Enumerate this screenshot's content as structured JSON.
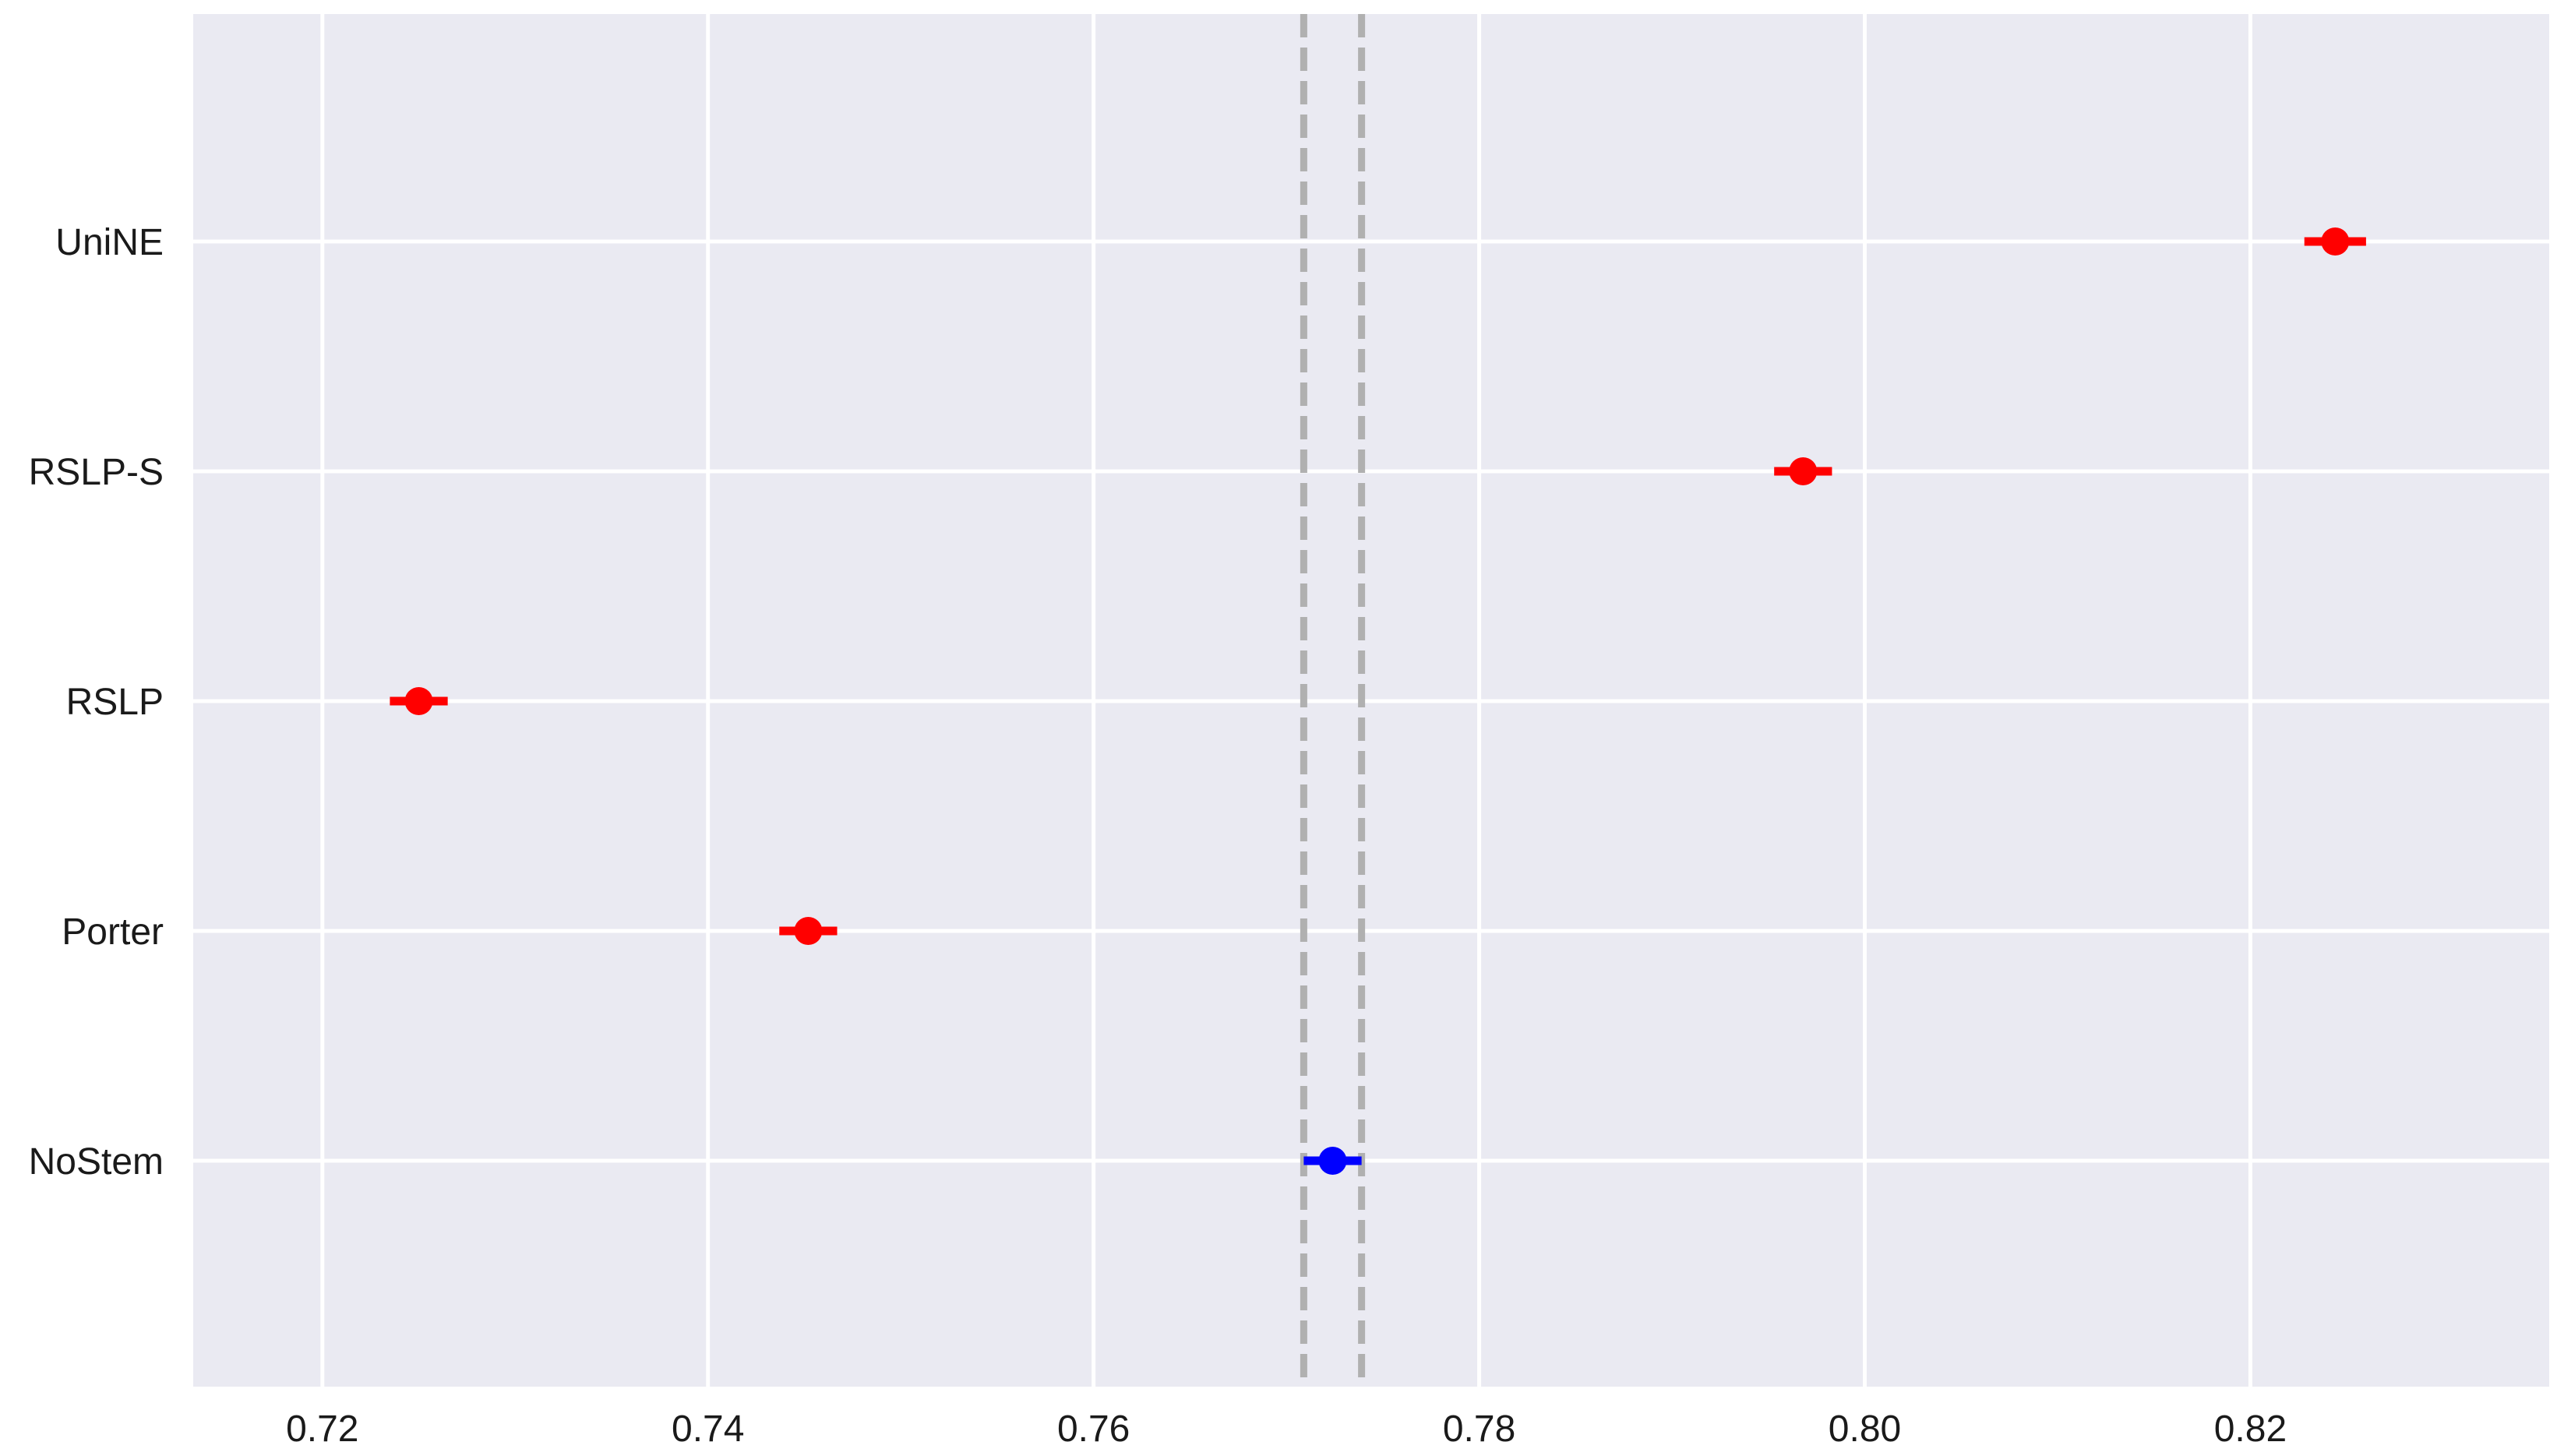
{
  "chart_data": {
    "type": "scatter",
    "title": "",
    "xlabel": "",
    "ylabel": "",
    "xlim": [
      0.7133,
      0.8355
    ],
    "x_ticks": [
      0.72,
      0.74,
      0.76,
      0.78,
      0.8,
      0.82
    ],
    "x_tick_labels": [
      "0.72",
      "0.74",
      "0.76",
      "0.78",
      "0.80",
      "0.82"
    ],
    "categories": [
      "UniNE",
      "RSLP-S",
      "RSLP",
      "Porter",
      "NoStem"
    ],
    "points": [
      {
        "category": "UniNE",
        "value": 0.8244,
        "ci": [
          0.8228,
          0.826
        ],
        "color": "#ff0000"
      },
      {
        "category": "RSLP-S",
        "value": 0.7968,
        "ci": [
          0.7953,
          0.7983
        ],
        "color": "#ff0000"
      },
      {
        "category": "RSLP",
        "value": 0.725,
        "ci": [
          0.7235,
          0.7265
        ],
        "color": "#ff0000"
      },
      {
        "category": "Porter",
        "value": 0.7452,
        "ci": [
          0.7437,
          0.7467
        ],
        "color": "#ff0000"
      },
      {
        "category": "NoStem",
        "value": 0.7724,
        "ci": [
          0.7709,
          0.7739
        ],
        "color": "#0000ff"
      }
    ],
    "reference_lines": [
      {
        "x": 0.7709,
        "style": "dashed",
        "color": "#b0b0b0"
      },
      {
        "x": 0.7739,
        "style": "dashed",
        "color": "#b0b0b0"
      }
    ],
    "grid": true,
    "background": "#eaeaf2",
    "grid_color": "#ffffff",
    "text_color": "#1a1a1a"
  }
}
